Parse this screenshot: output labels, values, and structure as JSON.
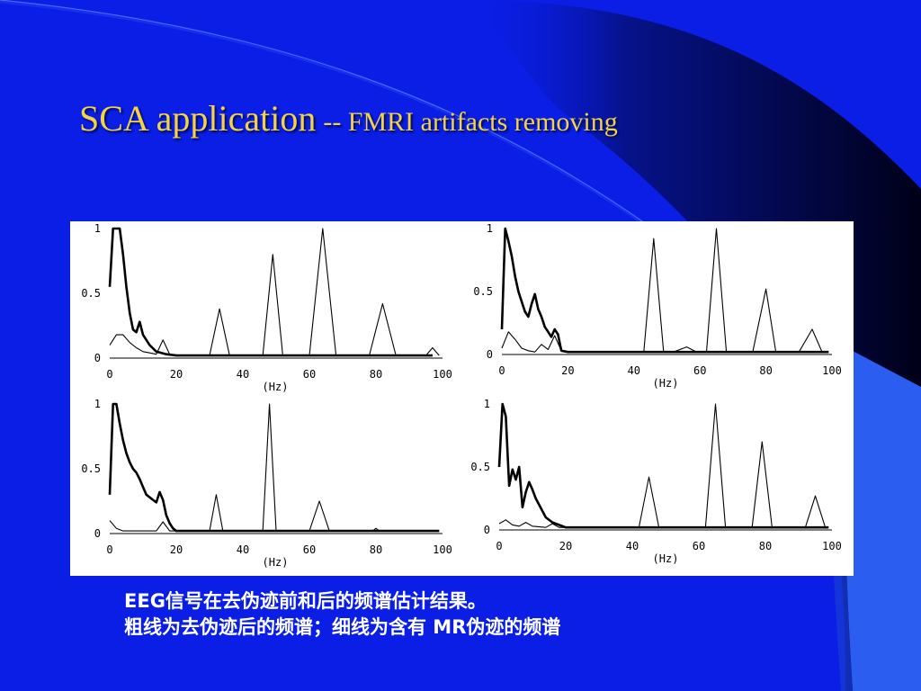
{
  "slide": {
    "title_main": "SCA application",
    "title_sub": "-- FMRI artifacts removing",
    "caption_line1": "EEG信号在去伪迹前和后的频谱估计结果。",
    "caption_line2": "粗线为去伪迹后的频谱；细线为含有 MR伪迹的频谱"
  },
  "colors": {
    "background": "#0a1ee6",
    "title": "#f2d24a",
    "caption": "#ffffff",
    "plot_line": "#000000"
  },
  "chart_data": [
    {
      "type": "line",
      "xlabel": "(Hz)",
      "xlim": [
        0,
        100
      ],
      "ylim": [
        0,
        1
      ],
      "xticks": [
        "0",
        "20",
        "40",
        "60",
        "80",
        "100"
      ],
      "yticks": [
        "0",
        "0.5",
        "1"
      ],
      "series": [
        {
          "style": "thick",
          "x": [
            0,
            1,
            2,
            3,
            4,
            5,
            6,
            7,
            8,
            9,
            10,
            12,
            14,
            17,
            20,
            40,
            60,
            80,
            97
          ],
          "y": [
            0.55,
            1.0,
            1.0,
            1.0,
            0.8,
            0.55,
            0.35,
            0.22,
            0.2,
            0.28,
            0.18,
            0.1,
            0.05,
            0.03,
            0.02,
            0.02,
            0.02,
            0.02,
            0.02
          ]
        },
        {
          "style": "thin",
          "x": [
            0,
            2,
            4,
            6,
            8,
            10,
            12,
            14,
            16,
            18,
            20,
            30,
            33,
            36,
            46,
            49,
            52,
            60,
            64,
            68,
            78,
            82,
            86,
            95,
            97,
            99
          ],
          "y": [
            0.1,
            0.18,
            0.18,
            0.12,
            0.08,
            0.05,
            0.04,
            0.03,
            0.14,
            0.03,
            0.02,
            0.02,
            0.38,
            0.02,
            0.02,
            0.8,
            0.02,
            0.02,
            1.0,
            0.02,
            0.02,
            0.42,
            0.02,
            0.02,
            0.08,
            0.02
          ]
        }
      ]
    },
    {
      "type": "line",
      "xlabel": "(Hz)",
      "xlim": [
        0,
        100
      ],
      "ylim": [
        0,
        1
      ],
      "xticks": [
        "0",
        "20",
        "40",
        "60",
        "80",
        "100"
      ],
      "yticks": [
        "0",
        "0.5",
        "1"
      ],
      "series": [
        {
          "style": "thick",
          "x": [
            0,
            1,
            2,
            3,
            4,
            5,
            6,
            7,
            8,
            9,
            10,
            11,
            12,
            13,
            14,
            15,
            16,
            17,
            18,
            20,
            40,
            60,
            80,
            99
          ],
          "y": [
            0.2,
            1.0,
            0.9,
            0.78,
            0.62,
            0.5,
            0.42,
            0.34,
            0.3,
            0.4,
            0.48,
            0.36,
            0.3,
            0.22,
            0.18,
            0.14,
            0.2,
            0.16,
            0.03,
            0.02,
            0.02,
            0.02,
            0.02,
            0.02
          ]
        },
        {
          "style": "thin",
          "x": [
            0,
            2,
            4,
            6,
            8,
            10,
            12,
            14,
            16,
            18,
            20,
            43,
            46,
            49,
            52,
            56,
            59,
            62,
            65,
            68,
            76,
            80,
            83,
            90,
            94,
            97
          ],
          "y": [
            0.05,
            0.18,
            0.12,
            0.05,
            0.03,
            0.02,
            0.08,
            0.04,
            0.15,
            0.03,
            0.02,
            0.02,
            0.92,
            0.02,
            0.02,
            0.06,
            0.02,
            0.02,
            1.0,
            0.02,
            0.02,
            0.52,
            0.02,
            0.02,
            0.2,
            0.02
          ]
        }
      ]
    },
    {
      "type": "line",
      "xlabel": "(Hz)",
      "xlim": [
        0,
        100
      ],
      "ylim": [
        0,
        1
      ],
      "xticks": [
        "0",
        "20",
        "40",
        "60",
        "80",
        "100"
      ],
      "yticks": [
        "0",
        "0.5",
        "1"
      ],
      "series": [
        {
          "style": "thick",
          "x": [
            0,
            1,
            2,
            3,
            4,
            5,
            6,
            7,
            8,
            9,
            10,
            11,
            12,
            13,
            14,
            15,
            16,
            17,
            18,
            19,
            20,
            40,
            60,
            80,
            99
          ],
          "y": [
            0.3,
            1.0,
            1.0,
            0.85,
            0.72,
            0.62,
            0.55,
            0.5,
            0.47,
            0.42,
            0.36,
            0.3,
            0.28,
            0.26,
            0.24,
            0.32,
            0.26,
            0.14,
            0.08,
            0.04,
            0.02,
            0.02,
            0.02,
            0.02,
            0.02
          ]
        },
        {
          "style": "thin",
          "x": [
            0,
            2,
            4,
            6,
            8,
            12,
            14,
            16,
            18,
            20,
            30,
            32,
            34,
            46,
            48,
            50,
            60,
            63,
            66,
            79,
            80,
            81,
            99
          ],
          "y": [
            0.1,
            0.04,
            0.02,
            0.02,
            0.02,
            0.02,
            0.02,
            0.09,
            0.02,
            0.02,
            0.02,
            0.3,
            0.02,
            0.02,
            1.0,
            0.02,
            0.02,
            0.25,
            0.02,
            0.02,
            0.04,
            0.02,
            0.02
          ]
        }
      ]
    },
    {
      "type": "line",
      "xlabel": "(Hz)",
      "xlim": [
        0,
        100
      ],
      "ylim": [
        0,
        1
      ],
      "xticks": [
        "0",
        "20",
        "40",
        "60",
        "80",
        "100"
      ],
      "yticks": [
        "0",
        "0.5",
        "1"
      ],
      "series": [
        {
          "style": "thick",
          "x": [
            0,
            1,
            2,
            3,
            4,
            5,
            6,
            7,
            8,
            9,
            10,
            11,
            12,
            13,
            14,
            16,
            18,
            20,
            40,
            60,
            80,
            99
          ],
          "y": [
            0.5,
            1.0,
            0.9,
            0.35,
            0.48,
            0.4,
            0.5,
            0.18,
            0.3,
            0.38,
            0.32,
            0.25,
            0.2,
            0.15,
            0.1,
            0.06,
            0.04,
            0.02,
            0.02,
            0.02,
            0.02,
            0.02
          ]
        },
        {
          "style": "thin",
          "x": [
            0,
            2,
            4,
            6,
            8,
            10,
            14,
            16,
            18,
            20,
            42,
            45,
            48,
            56,
            59,
            62,
            65,
            68,
            76,
            79,
            82,
            92,
            95,
            98
          ],
          "y": [
            0.05,
            0.08,
            0.04,
            0.03,
            0.06,
            0.03,
            0.02,
            0.05,
            0.02,
            0.02,
            0.02,
            0.42,
            0.02,
            0.02,
            0.02,
            0.02,
            1.0,
            0.02,
            0.02,
            0.7,
            0.02,
            0.02,
            0.27,
            0.02
          ]
        }
      ]
    }
  ]
}
